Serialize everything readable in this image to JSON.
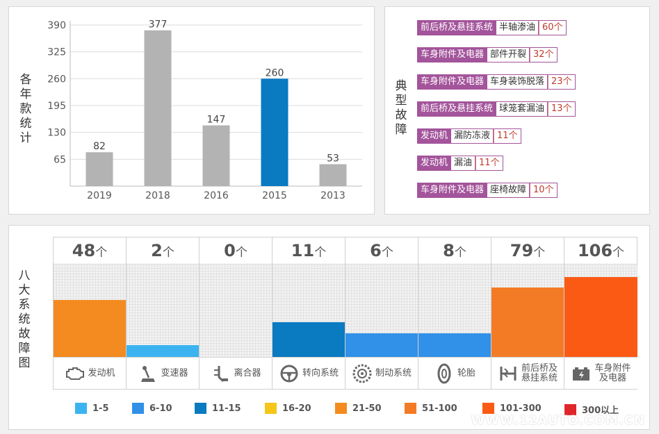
{
  "colors": {
    "bar_gray": "#b3b3b3",
    "bar_highlight": "#0a7ac1",
    "fault_tag": "#a3549b",
    "count_text": "#c0392b"
  },
  "year_panel": {
    "vertical_title": "各年款统计",
    "chart_data": {
      "type": "bar",
      "categories": [
        "2019",
        "2018",
        "2016",
        "2015",
        "2013"
      ],
      "values": [
        82,
        377,
        147,
        260,
        53
      ],
      "highlight_category": "2015",
      "yticks": [
        65,
        130,
        195,
        260,
        325,
        390
      ],
      "ylim": [
        0,
        400
      ],
      "grid": true,
      "title": "",
      "xlabel": "",
      "ylabel": ""
    }
  },
  "fault_panel": {
    "vertical_title": "典型故障",
    "rows": [
      {
        "system": "前后桥及悬挂系统",
        "type": "半轴渗油",
        "count": "60个"
      },
      {
        "system": "车身附件及电器",
        "type": "部件开裂",
        "count": "32个"
      },
      {
        "system": "车身附件及电器",
        "type": "车身装饰脱落",
        "count": "23个"
      },
      {
        "system": "前后桥及悬挂系统",
        "type": "球笼套漏油",
        "count": "13个"
      },
      {
        "system": "发动机",
        "type": "漏防冻液",
        "count": "11个"
      },
      {
        "system": "发动机",
        "type": "漏油",
        "count": "11个"
      },
      {
        "system": "车身附件及电器",
        "type": "座椅故障",
        "count": "10个"
      }
    ]
  },
  "system_panel": {
    "vertical_title": "八大系统故障图",
    "unit": "个",
    "chart_data": {
      "type": "bar",
      "categories": [
        "发动机",
        "变速器",
        "离合器",
        "转向系统",
        "制动系统",
        "轮胎",
        "前后桥及悬挂系统",
        "车身附件及电器"
      ],
      "values": [
        48,
        2,
        0,
        11,
        6,
        8,
        79,
        106
      ],
      "colors": [
        "#f38b20",
        "#3bb3f0",
        "#0a7ac1",
        "#0a7ac1",
        "#3190e8",
        "#3190e8",
        "#f47b25",
        "#fb5a14"
      ],
      "fill_fraction": [
        0.62,
        0.13,
        0.0,
        0.38,
        0.26,
        0.26,
        0.76,
        0.87
      ]
    },
    "columns": [
      {
        "count": "48",
        "name": "发动机",
        "icon": "engine-icon"
      },
      {
        "count": "2",
        "name": "变速器",
        "icon": "gear-shift-icon"
      },
      {
        "count": "0",
        "name": "离合器",
        "icon": "clutch-pedal-icon"
      },
      {
        "count": "11",
        "name": "转向系统",
        "icon": "steering-wheel-icon"
      },
      {
        "count": "6",
        "name": "制动系统",
        "icon": "brake-disc-icon"
      },
      {
        "count": "8",
        "name": "轮胎",
        "icon": "tire-icon"
      },
      {
        "count": "79",
        "name": "前后桥及悬挂系统",
        "icon": "suspension-icon"
      },
      {
        "count": "106",
        "name": "车身附件及电器",
        "icon": "battery-icon"
      }
    ],
    "legend": [
      {
        "label": "1-5",
        "color": "#3bb3f0"
      },
      {
        "label": "6-10",
        "color": "#3190e8"
      },
      {
        "label": "11-15",
        "color": "#0a7ac1"
      },
      {
        "label": "16-20",
        "color": "#f5c518"
      },
      {
        "label": "21-50",
        "color": "#f38b20"
      },
      {
        "label": "51-100",
        "color": "#f47b25"
      },
      {
        "label": "101-300",
        "color": "#fb5a14"
      },
      {
        "label": "300以上",
        "color": "#e0262a"
      }
    ]
  },
  "watermark": "WWW.12AUTO.COM.CN"
}
